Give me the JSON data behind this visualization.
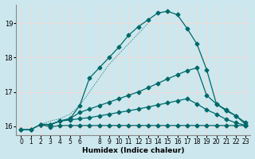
{
  "xlabel": "Humidex (Indice chaleur)",
  "bg_color": "#cce8ee",
  "grid_color": "#f0d8d8",
  "line_color": "#006868",
  "xlim": [
    -0.5,
    23.5
  ],
  "ylim": [
    15.75,
    19.55
  ],
  "yticks": [
    16,
    17,
    18,
    19
  ],
  "xticks": [
    0,
    1,
    2,
    3,
    4,
    5,
    6,
    8,
    9,
    10,
    11,
    12,
    13,
    14,
    15,
    16,
    17,
    18,
    19,
    20,
    21,
    22,
    23
  ],
  "series_flat_x": [
    0,
    1,
    2,
    3,
    4,
    5,
    6,
    7,
    8,
    9,
    10,
    11,
    12,
    13,
    14,
    15,
    16,
    17,
    18,
    19,
    20,
    21,
    22,
    23
  ],
  "series_flat_y": [
    15.9,
    15.9,
    16.05,
    15.98,
    16.02,
    16.02,
    16.02,
    16.02,
    16.02,
    16.02,
    16.02,
    16.02,
    16.02,
    16.02,
    16.02,
    16.02,
    16.02,
    16.02,
    16.02,
    16.02,
    16.02,
    16.02,
    16.02,
    16.02
  ],
  "series_slope_x": [
    0,
    1,
    2,
    3,
    4,
    5,
    6,
    7,
    8,
    9,
    10,
    11,
    12,
    13,
    14,
    15,
    16,
    17,
    18,
    19,
    20,
    21,
    22,
    23
  ],
  "series_slope_y": [
    15.9,
    15.9,
    16.05,
    16.05,
    16.15,
    16.18,
    16.22,
    16.25,
    16.3,
    16.35,
    16.4,
    16.45,
    16.5,
    16.56,
    16.62,
    16.68,
    16.74,
    16.8,
    16.65,
    16.48,
    16.35,
    16.2,
    16.1,
    16.02
  ],
  "series_mid_x": [
    2,
    3,
    4,
    5,
    6,
    7,
    8,
    9,
    10,
    11,
    12,
    13,
    14,
    15,
    16,
    17,
    18,
    19,
    20,
    21,
    22,
    23
  ],
  "series_mid_y": [
    16.05,
    16.05,
    16.15,
    16.22,
    16.4,
    16.5,
    16.6,
    16.7,
    16.8,
    16.9,
    17.0,
    17.12,
    17.25,
    17.38,
    17.5,
    17.62,
    17.7,
    16.9,
    16.65,
    16.48,
    16.3,
    16.1
  ],
  "series_peak_x": [
    2,
    3,
    4,
    5,
    6,
    7,
    8,
    9,
    10,
    11,
    12,
    13,
    14,
    15,
    16,
    17,
    18,
    19,
    20,
    21,
    22,
    23
  ],
  "series_peak_y": [
    16.05,
    16.05,
    16.15,
    16.22,
    16.6,
    17.4,
    17.7,
    18.0,
    18.3,
    18.65,
    18.9,
    19.1,
    19.3,
    19.35,
    19.25,
    18.85,
    18.4,
    17.65,
    16.65,
    16.45,
    16.3,
    16.05
  ],
  "series_dotted_x": [
    0,
    1,
    2,
    3,
    4,
    5,
    6,
    7,
    8,
    9,
    10,
    11,
    12,
    13
  ],
  "series_dotted_y": [
    15.9,
    15.9,
    16.05,
    16.15,
    16.22,
    16.35,
    16.6,
    17.0,
    17.4,
    17.8,
    18.1,
    18.4,
    18.7,
    19.0
  ],
  "markersize": 2.5
}
